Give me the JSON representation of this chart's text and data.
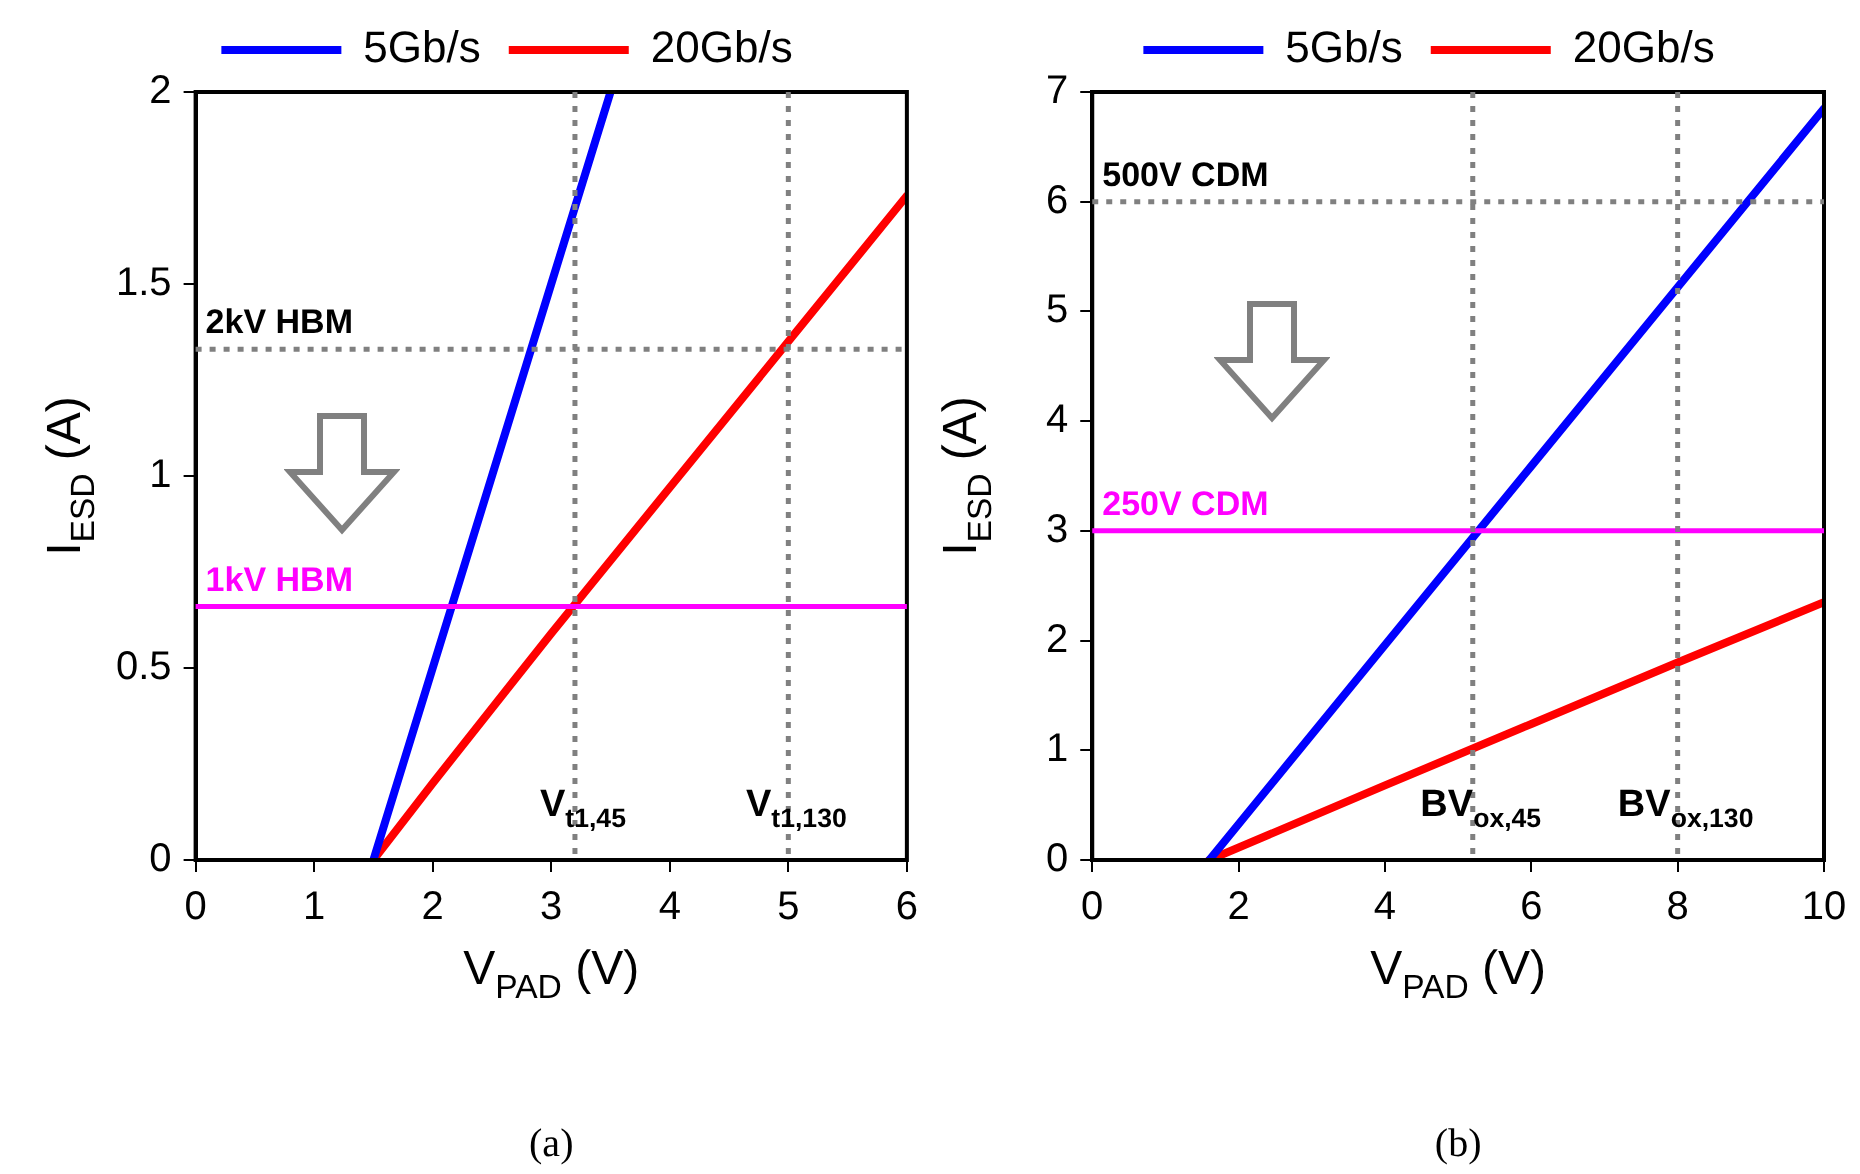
{
  "chart_data": [
    {
      "type": "line",
      "xlabel": "V$_{PAD}$ (V)",
      "ylabel": "I$_{ESD}$ (A)",
      "legend": "top",
      "xlim": [
        0,
        6
      ],
      "ylim": [
        0,
        2
      ],
      "xticks": [
        0,
        1,
        2,
        3,
        4,
        5,
        6
      ],
      "yticks": [
        0,
        0.5,
        1,
        1.5,
        2
      ],
      "series": [
        {
          "name": "5Gb/s",
          "color": "#0000ff",
          "x": [
            1.5,
            2,
            2.5,
            3,
            3.5
          ],
          "values": [
            0,
            0.5,
            1,
            1.5,
            2
          ]
        },
        {
          "name": "20Gb/s",
          "color": "#ff0000",
          "x": [
            1.5,
            2,
            3,
            4,
            5,
            6
          ],
          "values": [
            0,
            0.2,
            0.59,
            0.97,
            1.35,
            1.73
          ]
        }
      ],
      "ref_lines": [
        {
          "axis": "y",
          "value": 1.33,
          "label": "2kV HBM",
          "color": "#808080",
          "line_style": "dotted"
        },
        {
          "axis": "y",
          "value": 0.66,
          "label": "1kV HBM",
          "color": "#ff00ff",
          "line_style": "solid"
        },
        {
          "axis": "x",
          "value": 3.2,
          "label": "V$_{t1,45}$",
          "color": "#808080",
          "line_style": "dotted"
        },
        {
          "axis": "x",
          "value": 5,
          "label": "V$_{t1,130}$",
          "color": "#808080",
          "line_style": "dotted"
        }
      ],
      "annotations": [
        "(a)"
      ]
    },
    {
      "type": "line",
      "xlabel": "V$_{PAD}$ (V)",
      "ylabel": "I$_{ESD}$ (A)",
      "legend": "top",
      "xlim": [
        0,
        10
      ],
      "ylim": [
        0,
        7
      ],
      "xticks": [
        0,
        2,
        4,
        6,
        8,
        10
      ],
      "yticks": [
        0,
        1,
        2,
        3,
        4,
        5,
        6,
        7
      ],
      "series": [
        {
          "name": "5Gb/s",
          "color": "#0000ff",
          "x": [
            1.6,
            4,
            6,
            8,
            10
          ],
          "values": [
            0,
            1.96,
            3.59,
            5.22,
            6.85
          ]
        },
        {
          "name": "20Gb/s",
          "color": "#ff0000",
          "x": [
            1.6,
            4,
            6,
            8,
            10
          ],
          "values": [
            0,
            0.68,
            1.24,
            1.8,
            2.35
          ]
        }
      ],
      "ref_lines": [
        {
          "axis": "y",
          "value": 6,
          "label": "500V CDM",
          "color": "#808080",
          "line_style": "dotted"
        },
        {
          "axis": "y",
          "value": 3,
          "label": "250V CDM",
          "color": "#ff00ff",
          "line_style": "solid"
        },
        {
          "axis": "x",
          "value": 5.2,
          "label": "BV$_{ox,45}$",
          "color": "#808080",
          "line_style": "dotted"
        },
        {
          "axis": "x",
          "value": 8,
          "label": "BV$_{ox,130}$",
          "color": "#808080",
          "line_style": "dotted"
        }
      ],
      "annotations": [
        "(b)"
      ]
    }
  ]
}
